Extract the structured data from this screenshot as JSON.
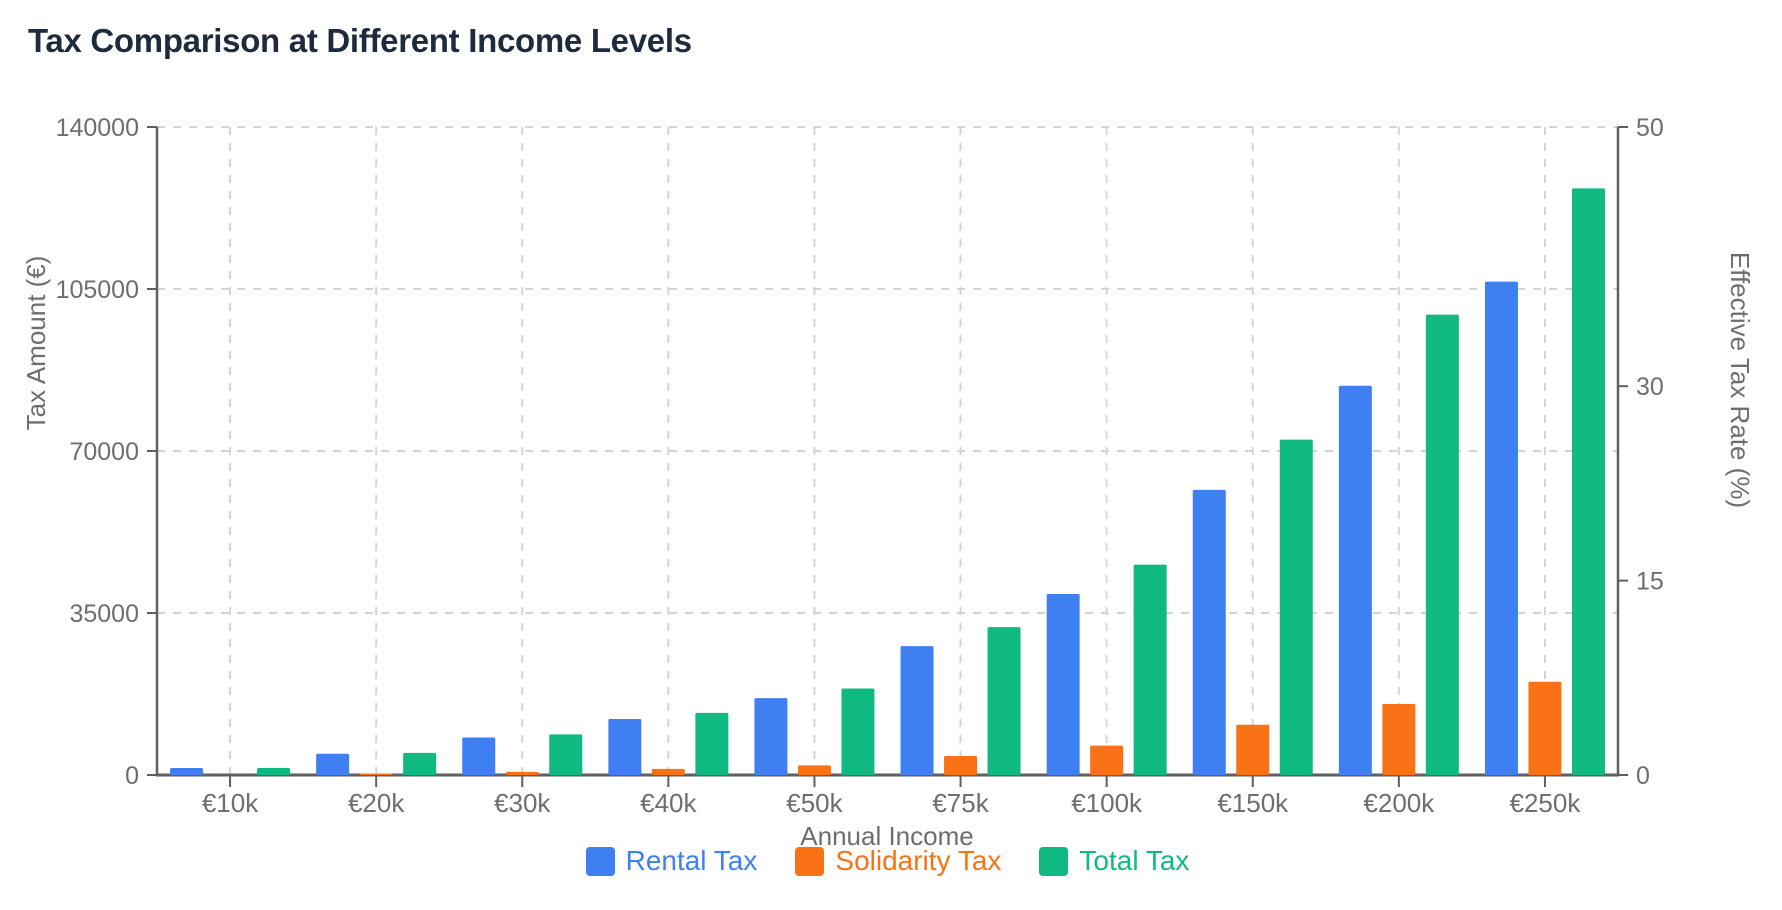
{
  "chart_data": {
    "type": "bar",
    "title": "Tax Comparison at Different Income Levels",
    "categories": [
      "€10k",
      "€20k",
      "€30k",
      "€40k",
      "€50k",
      "€75k",
      "€100k",
      "€150k",
      "€200k",
      "€250k"
    ],
    "series": [
      {
        "name": "Rental Tax",
        "color": "#3e7ff2",
        "axis": "left",
        "values": [
          1500,
          4600,
          8100,
          12100,
          16600,
          27850,
          39100,
          61600,
          84100,
          106600
        ]
      },
      {
        "name": "Solidarity Tax",
        "color": "#f97316",
        "axis": "left",
        "values": [
          0,
          176,
          676,
          1326,
          2076,
          4101,
          6351,
          10851,
          15351,
          20151
        ]
      },
      {
        "name": "Total Tax",
        "color": "#10b981",
        "axis": "left",
        "values": [
          1500,
          4776,
          8776,
          13426,
          18676,
          31951,
          45451,
          72451,
          99451,
          126751
        ]
      }
    ],
    "xlabel": "Annual Income",
    "ylabel_left": "Tax Amount (€)",
    "ylabel_right": "Effective Tax Rate (%)",
    "left_axis": {
      "min": 0,
      "max": 140000,
      "ticks": [
        0,
        35000,
        70000,
        105000,
        140000
      ]
    },
    "right_axis": {
      "min": 0,
      "max": 50,
      "ticks": [
        0,
        15,
        30,
        50
      ]
    },
    "grid": true,
    "legend_position": "bottom",
    "colors": {
      "title_text": "#1f2a3c",
      "axis_text": "#6e6e6e",
      "axis_line": "#5f5f5f",
      "gridline": "#d4d4d4",
      "background": "#ffffff"
    }
  }
}
